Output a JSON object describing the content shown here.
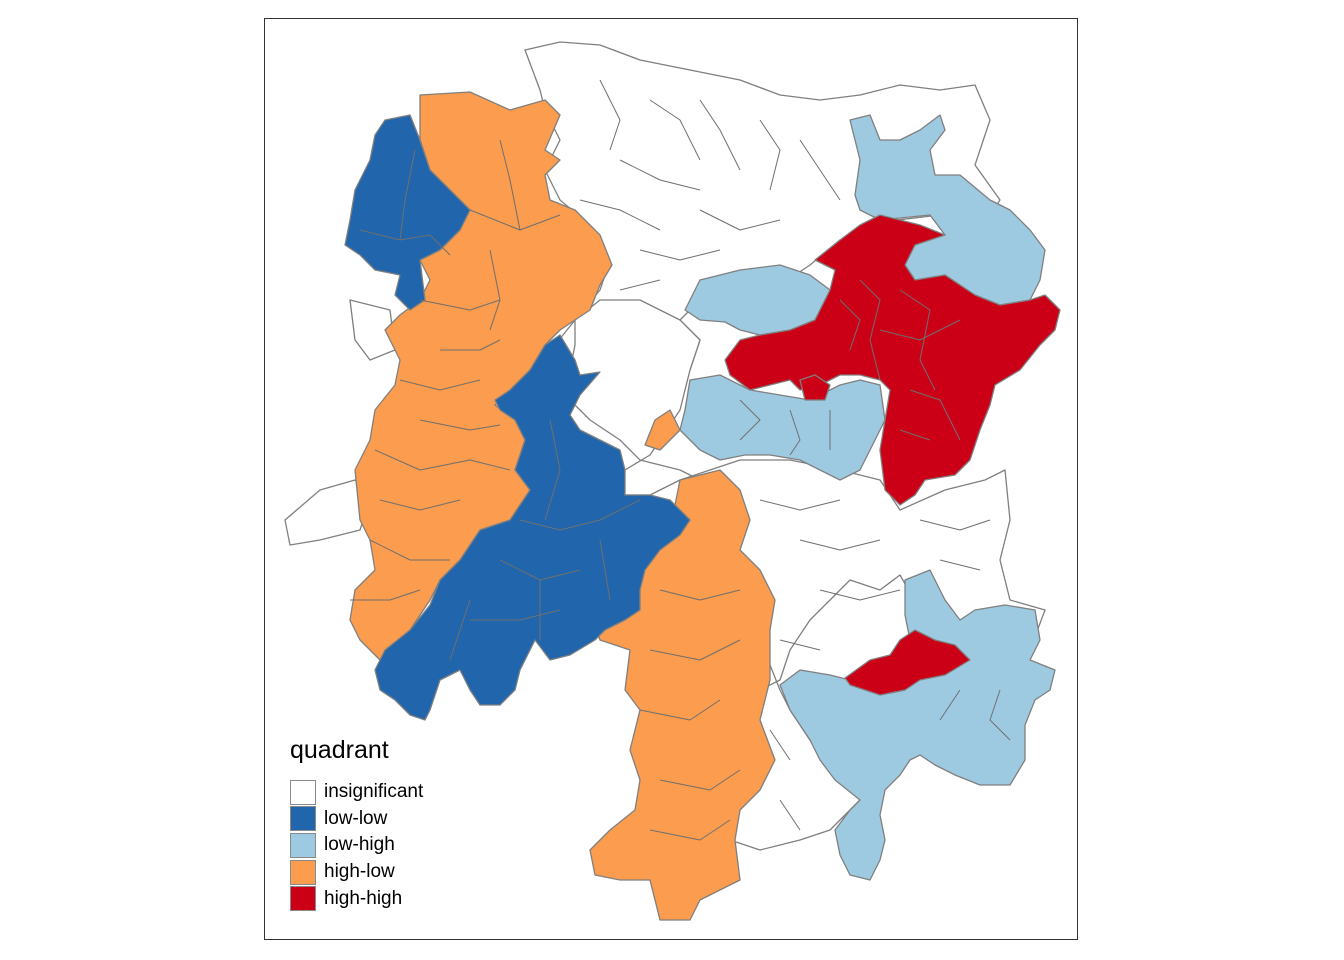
{
  "map": {
    "legend": {
      "title": "quadrant",
      "items": [
        {
          "label": "insignificant",
          "color": "#ffffff"
        },
        {
          "label": "low-low",
          "color": "#2166ac"
        },
        {
          "label": "low-high",
          "color": "#9ecae1"
        },
        {
          "label": "high-low",
          "color": "#fb9c4e"
        },
        {
          "label": "high-high",
          "color": "#cb0017"
        }
      ]
    }
  }
}
